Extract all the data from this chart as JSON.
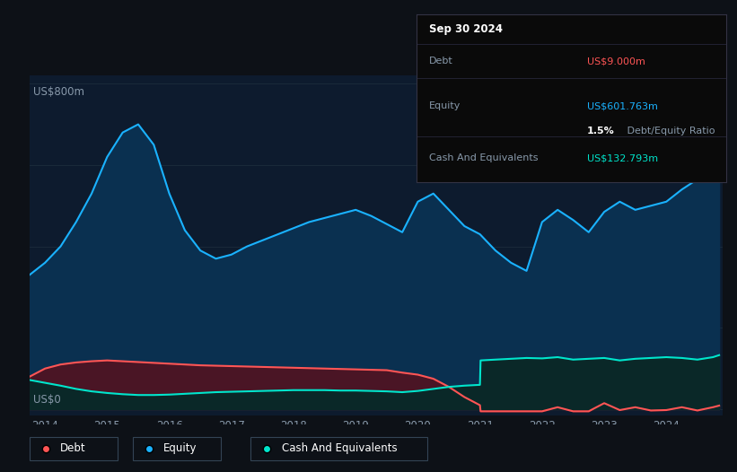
{
  "bg_color": "#0d1117",
  "plot_bg_color": "#0d1b2e",
  "grid_color": "#1a2a3a",
  "ylabel": "US$800m",
  "ylabel_zero": "US$0",
  "equity_color": "#1ab2ff",
  "equity_fill": "#0a3050",
  "debt_color": "#ff5555",
  "debt_fill": "#4a1525",
  "cash_color": "#00e5cc",
  "cash_fill": "#0a2828",
  "info_box": {
    "title": "Sep 30 2024",
    "debt_label": "Debt",
    "debt_value": "US$9.000m",
    "equity_label": "Equity",
    "equity_value": "US$601.763m",
    "ratio_value": "1.5%",
    "ratio_label": " Debt/Equity Ratio",
    "cash_label": "Cash And Equivalents",
    "cash_value": "US$132.793m"
  },
  "legend": [
    {
      "label": "Debt",
      "color": "#ff5555"
    },
    {
      "label": "Equity",
      "color": "#1ab2ff"
    },
    {
      "label": "Cash And Equivalents",
      "color": "#00e5cc"
    }
  ],
  "equity_x": [
    2013.75,
    2014.0,
    2014.25,
    2014.5,
    2014.75,
    2015.0,
    2015.25,
    2015.5,
    2015.75,
    2016.0,
    2016.25,
    2016.5,
    2016.75,
    2017.0,
    2017.25,
    2017.5,
    2017.75,
    2018.0,
    2018.25,
    2018.5,
    2018.75,
    2019.0,
    2019.25,
    2019.5,
    2019.75,
    2020.0,
    2020.25,
    2020.5,
    2020.75,
    2021.0,
    2021.25,
    2021.5,
    2021.75,
    2022.0,
    2022.25,
    2022.5,
    2022.75,
    2023.0,
    2023.25,
    2023.5,
    2023.75,
    2024.0,
    2024.25,
    2024.5,
    2024.75,
    2024.85
  ],
  "equity_y": [
    330,
    360,
    400,
    460,
    530,
    620,
    680,
    700,
    650,
    530,
    440,
    390,
    370,
    380,
    400,
    415,
    430,
    445,
    460,
    470,
    480,
    490,
    475,
    455,
    435,
    510,
    530,
    490,
    450,
    430,
    390,
    360,
    340,
    460,
    490,
    465,
    435,
    485,
    510,
    490,
    500,
    510,
    540,
    565,
    590,
    605
  ],
  "debt_x": [
    2013.75,
    2014.0,
    2014.25,
    2014.5,
    2014.75,
    2015.0,
    2015.25,
    2015.5,
    2015.75,
    2016.0,
    2016.25,
    2016.5,
    2016.75,
    2017.0,
    2017.25,
    2017.5,
    2017.75,
    2018.0,
    2018.25,
    2018.5,
    2018.75,
    2019.0,
    2019.25,
    2019.5,
    2019.75,
    2020.0,
    2020.25,
    2020.5,
    2020.75,
    2021.0,
    2021.01,
    2021.25,
    2021.5,
    2021.75,
    2022.0,
    2022.25,
    2022.5,
    2022.75,
    2023.0,
    2023.25,
    2023.5,
    2023.75,
    2024.0,
    2024.25,
    2024.5,
    2024.75,
    2024.85
  ],
  "debt_y": [
    80,
    100,
    110,
    115,
    118,
    120,
    118,
    116,
    114,
    112,
    110,
    108,
    107,
    106,
    105,
    104,
    103,
    102,
    101,
    100,
    99,
    98,
    97,
    96,
    90,
    85,
    75,
    55,
    30,
    10,
    -5,
    -5,
    -5,
    -5,
    -5,
    5,
    -5,
    -5,
    15,
    -2,
    5,
    -3,
    -2,
    5,
    -3,
    5,
    9
  ],
  "cash_x": [
    2013.75,
    2014.0,
    2014.25,
    2014.5,
    2014.75,
    2015.0,
    2015.25,
    2015.5,
    2015.75,
    2016.0,
    2016.25,
    2016.5,
    2016.75,
    2017.0,
    2017.25,
    2017.5,
    2017.75,
    2018.0,
    2018.25,
    2018.5,
    2018.75,
    2019.0,
    2019.25,
    2019.5,
    2019.75,
    2020.0,
    2020.25,
    2020.5,
    2020.75,
    2021.0,
    2021.01,
    2021.25,
    2021.5,
    2021.75,
    2022.0,
    2022.25,
    2022.5,
    2022.75,
    2023.0,
    2023.25,
    2023.5,
    2023.75,
    2024.0,
    2024.25,
    2024.5,
    2024.75,
    2024.85
  ],
  "cash_y": [
    72,
    65,
    58,
    50,
    44,
    40,
    37,
    35,
    35,
    36,
    38,
    40,
    42,
    43,
    44,
    45,
    46,
    47,
    47,
    47,
    46,
    46,
    45,
    44,
    42,
    45,
    50,
    55,
    58,
    60,
    120,
    122,
    124,
    126,
    125,
    128,
    122,
    124,
    126,
    120,
    124,
    126,
    128,
    126,
    122,
    128,
    133
  ]
}
